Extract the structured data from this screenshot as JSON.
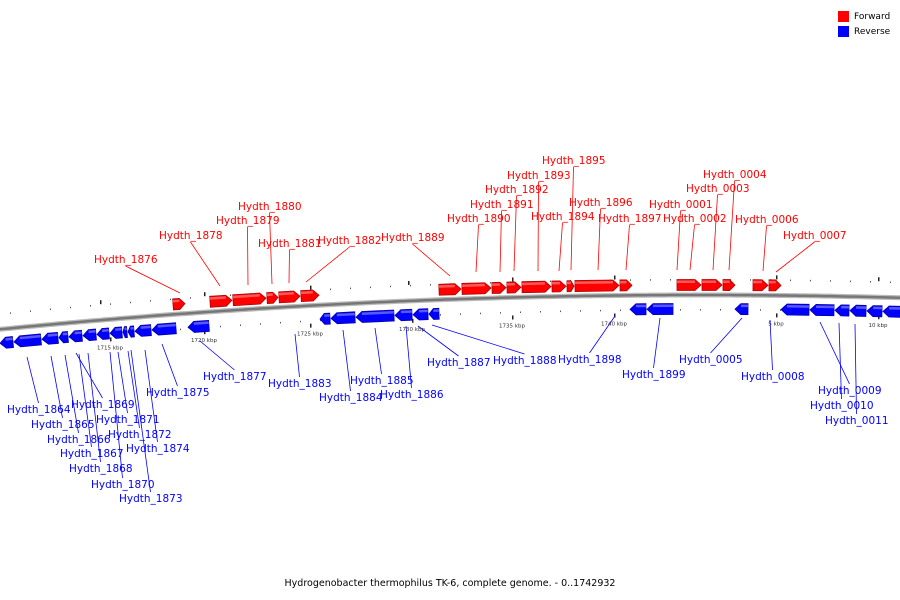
{
  "caption": "Hydrogenobacter thermophilus TK-6, complete genome. - 0..1742932",
  "legend": {
    "forward": {
      "label": "Forward",
      "color": "#ff0000"
    },
    "reverse": {
      "label": "Reverse",
      "color": "#0000ff"
    }
  },
  "colors": {
    "forward": "#ff0000",
    "forward_dark": "#b00000",
    "reverse": "#0000ff",
    "reverse_dark": "#0000a8",
    "backbone": "#777777"
  },
  "ticks": [
    {
      "label": "1715 kbp"
    },
    {
      "label": "1720 kbp"
    },
    {
      "label": "1725 kbp"
    },
    {
      "label": "1730 kbp"
    },
    {
      "label": "1735 kbp"
    },
    {
      "label": "1740 kbp"
    },
    {
      "label": "5 kbp"
    },
    {
      "label": "10 kbp"
    }
  ],
  "forward_genes": [
    {
      "name": "Hydth_1876"
    },
    {
      "name": "Hydth_1878"
    },
    {
      "name": "Hydth_1879"
    },
    {
      "name": "Hydth_1880"
    },
    {
      "name": "Hydth_1881"
    },
    {
      "name": "Hydth_1882"
    },
    {
      "name": "Hydth_1889"
    },
    {
      "name": "Hydth_1890"
    },
    {
      "name": "Hydth_1891"
    },
    {
      "name": "Hydth_1892"
    },
    {
      "name": "Hydth_1893"
    },
    {
      "name": "Hydth_1894"
    },
    {
      "name": "Hydth_1895"
    },
    {
      "name": "Hydth_1896"
    },
    {
      "name": "Hydth_1897"
    },
    {
      "name": "Hydth_0001"
    },
    {
      "name": "Hydth_0002"
    },
    {
      "name": "Hydth_0003"
    },
    {
      "name": "Hydth_0004"
    },
    {
      "name": "Hydth_0006"
    },
    {
      "name": "Hydth_0007"
    }
  ],
  "reverse_genes": [
    {
      "name": "Hydth_1864"
    },
    {
      "name": "Hydth_1865"
    },
    {
      "name": "Hydth_1866"
    },
    {
      "name": "Hydth_1867"
    },
    {
      "name": "Hydth_1868"
    },
    {
      "name": "Hydth_1869"
    },
    {
      "name": "Hydth_1870"
    },
    {
      "name": "Hydth_1871"
    },
    {
      "name": "Hydth_1872"
    },
    {
      "name": "Hydth_1873"
    },
    {
      "name": "Hydth_1874"
    },
    {
      "name": "Hydth_1875"
    },
    {
      "name": "Hydth_1877"
    },
    {
      "name": "Hydth_1883"
    },
    {
      "name": "Hydth_1884"
    },
    {
      "name": "Hydth_1885"
    },
    {
      "name": "Hydth_1886"
    },
    {
      "name": "Hydth_1887"
    },
    {
      "name": "Hydth_1888"
    },
    {
      "name": "Hydth_1898"
    },
    {
      "name": "Hydth_1899"
    },
    {
      "name": "Hydth_0005"
    },
    {
      "name": "Hydth_0008"
    },
    {
      "name": "Hydth_0009"
    },
    {
      "name": "Hydth_0010"
    },
    {
      "name": "Hydth_0011"
    }
  ]
}
